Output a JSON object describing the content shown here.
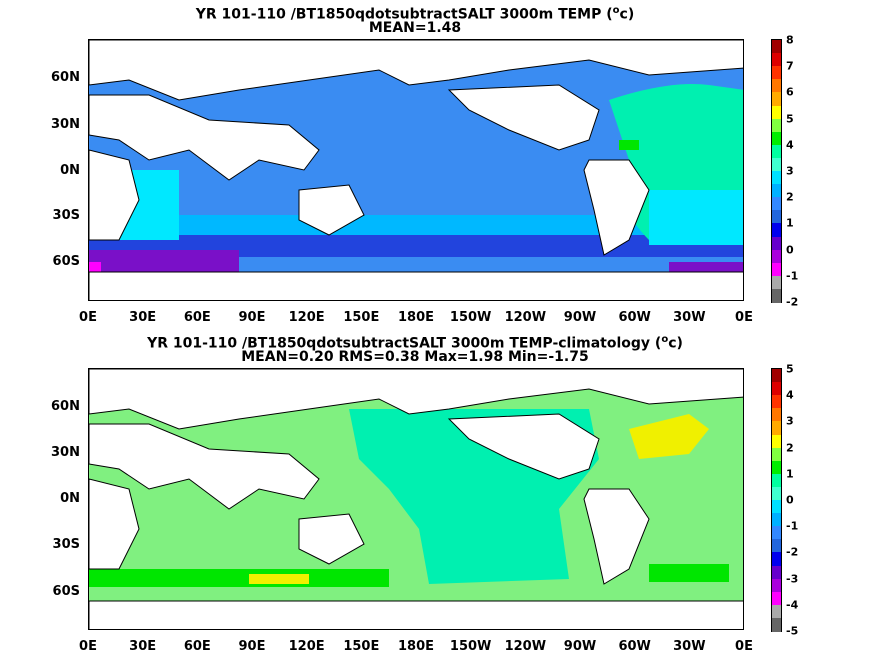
{
  "panel1": {
    "title_line1": "YR 101-110 /BT1850qdotsubtractSALT 3000m TEMP (",
    "title_unit_sup": "o",
    "title_unit_close": "c)",
    "title_line2": "MEAN=1.48",
    "colorbar_ticks": [
      "8",
      "7",
      "6",
      "5",
      "4",
      "3",
      "2",
      "1",
      "0",
      "-1",
      "-2"
    ],
    "colorbar_colors": [
      "#a00000",
      "#dd0000",
      "#ff3300",
      "#ff7700",
      "#ffaa00",
      "#ffff00",
      "#80ff40",
      "#00ee00",
      "#00ffa0",
      "#40ffd0",
      "#00e0ff",
      "#00b0ff",
      "#3388ff",
      "#2266dd",
      "#0000ee",
      "#6600cc",
      "#aa00dd",
      "#ff00ff",
      "#aaaaaa",
      "#666666"
    ]
  },
  "panel2": {
    "title_line1": "YR 101-110 /BT1850qdotsubtractSALT 3000m TEMP-climatology (",
    "title_unit_sup": "o",
    "title_unit_close": "c)",
    "title_line2": "MEAN=0.20   RMS=0.38   Max=1.98   Min=-1.75",
    "colorbar_ticks": [
      "5",
      "4",
      "3",
      "2",
      "1",
      "0",
      "-1",
      "-2",
      "-3",
      "-4",
      "-5"
    ],
    "colorbar_colors": [
      "#a00000",
      "#dd0000",
      "#ff3300",
      "#ff7700",
      "#ffaa00",
      "#ffff00",
      "#80ff40",
      "#00ee00",
      "#00ffa0",
      "#40ffd0",
      "#00e0ff",
      "#00b0ff",
      "#3388ff",
      "#2266dd",
      "#0000ee",
      "#6600cc",
      "#aa00dd",
      "#ff00ff",
      "#aaaaaa",
      "#666666"
    ]
  },
  "lat_labels": [
    "60N",
    "30N",
    "0N",
    "30S",
    "60S"
  ],
  "lon_labels": [
    "0E",
    "30E",
    "60E",
    "90E",
    "120E",
    "150E",
    "180E",
    "150W",
    "120W",
    "90W",
    "60W",
    "30W",
    "0E"
  ],
  "colors": {
    "blue_field": "#3a8cf2",
    "light_blue": "#00b8ff",
    "cyan": "#00e8ff",
    "seafoam": "#00f0b0",
    "green": "#00e600",
    "light_green": "#80f080",
    "yellow": "#f0f000",
    "dark_blue": "#2244dd",
    "purple": "#7a10c8",
    "magenta": "#ff00ff",
    "land": "#ffffff"
  }
}
